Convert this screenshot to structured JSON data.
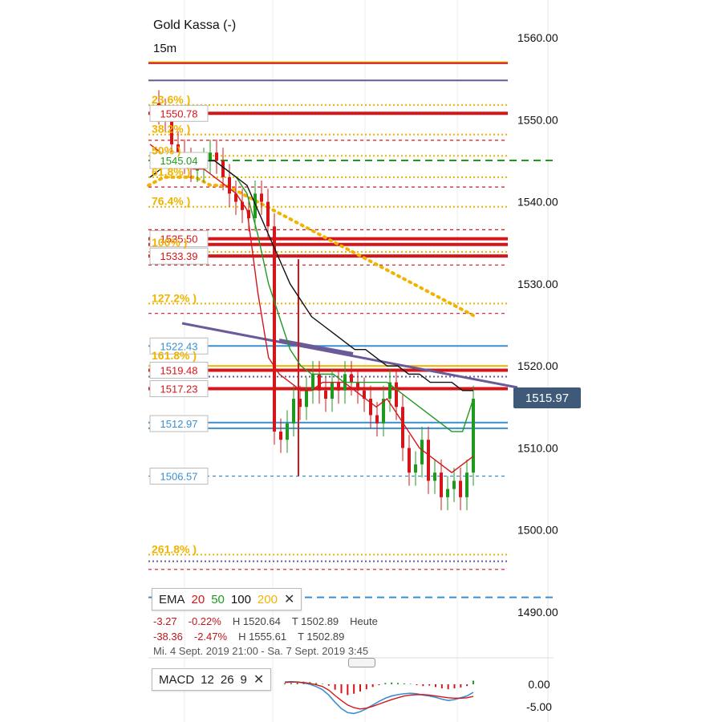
{
  "header": {
    "title": "Gold Kassa (-)",
    "timeframe": "15m"
  },
  "current_price": "1515.97",
  "level_labels": {
    "l1550": "1550.78",
    "l1545": "1545.04",
    "l1535": "1535.50",
    "l1533": "1533.39",
    "l1522": "1522.43",
    "l1519": "1519.48",
    "l1517": "1517.23",
    "l1512": "1512.97",
    "l1506": "1506.57"
  },
  "fib_labels": [
    "23.6%",
    "38.2%",
    "50%",
    "61.8%",
    "76.4%",
    "100%",
    "127.2%",
    "161.8%",
    "261.8%"
  ],
  "ema_legend": {
    "label": "EMA",
    "p20": "20",
    "p50": "50",
    "p100": "100",
    "p200": "200",
    "close": "✕"
  },
  "stats_row1": {
    "chg": "-3.27",
    "pct": "-0.22%",
    "high": "H 1520.64",
    "low": "T 1502.89",
    "period": "Heute"
  },
  "stats_row2": {
    "chg": "-38.36",
    "pct": "-2.47%",
    "high": "H 1555.61",
    "low": "T 1502.89"
  },
  "date_range": "Mi. 4 Sept. 2019 21:00 - Sa. 7 Sept. 2019 3:45",
  "macd_legend": {
    "label": "MACD",
    "fast": "12",
    "slow": "26",
    "signal": "9",
    "close": "✕"
  },
  "colors": {
    "ema20": "#d4161b",
    "ema50": "#1f9a1f",
    "ema100": "#111111",
    "ema200": "#f0b400",
    "fib": "#f0b400",
    "support": "#3a8fd0",
    "resistance": "#d4161b",
    "trendline": "#6a5a9a",
    "price_tag": "#3f5a78"
  },
  "chart_data": [
    {
      "type": "candlestick",
      "title": "Gold Kassa (-)",
      "timeframe": "15m",
      "x_range": [
        "Mi. 4 Sept. 2019 21:00",
        "Sa. 7 Sept. 2019 3:45"
      ],
      "ylim": [
        1486,
        1563
      ],
      "y_ticks": [
        "1560.00",
        "1550.00",
        "1540.00",
        "1530.00",
        "1520.00",
        "1510.00",
        "1500.00",
        "1490.00"
      ],
      "y_tick_values": [
        1560,
        1550,
        1540,
        1530,
        1520,
        1510,
        1500,
        1490
      ],
      "last_price": 1515.97,
      "close_path": [
        1552,
        1551,
        1550,
        1547,
        1546,
        1545,
        1544,
        1544,
        1545,
        1546,
        1545,
        1543,
        1541,
        1540,
        1539,
        1538,
        1541,
        1540,
        1537,
        1512,
        1511,
        1513,
        1516,
        1515,
        1517,
        1519,
        1517,
        1516,
        1518,
        1517,
        1519,
        1518,
        1517,
        1516,
        1514,
        1513,
        1516,
        1518,
        1515,
        1510,
        1507,
        1508,
        1511,
        1506,
        1507,
        1504,
        1505,
        1506,
        1504,
        1507,
        1516
      ],
      "ema_series": [
        {
          "name": "20",
          "color": "#d4161b",
          "values": [
            1547,
            1546,
            1545,
            1545,
            1544,
            1544,
            1543,
            1542,
            1541,
            1539,
            1529,
            1521,
            1519,
            1518,
            1517,
            1517,
            1518,
            1518,
            1518,
            1517,
            1516,
            1515,
            1516,
            1514,
            1512,
            1510,
            1509,
            1508,
            1507,
            1508,
            1509
          ]
        },
        {
          "name": "50",
          "color": "#1f9a1f",
          "values": [
            1545,
            1546,
            1546,
            1546,
            1546,
            1545,
            1545,
            1544,
            1543,
            1541,
            1536,
            1530,
            1526,
            1522,
            1520,
            1519,
            1519,
            1519,
            1518,
            1518,
            1518,
            1518,
            1518,
            1517,
            1516,
            1515,
            1514,
            1513,
            1512,
            1512,
            1516
          ]
        },
        {
          "name": "100",
          "color": "#111111",
          "values": [
            1543,
            1544,
            1545,
            1545,
            1545,
            1545,
            1545,
            1544,
            1543,
            1542,
            1539,
            1536,
            1533,
            1530,
            1528,
            1526,
            1525,
            1524,
            1523,
            1522,
            1522,
            1521,
            1520,
            1520,
            1519,
            1519,
            1518,
            1518,
            1518,
            1517,
            1517
          ]
        },
        {
          "name": "200",
          "color": "#f0b400",
          "values": [
            1542,
            1543,
            1543,
            1543,
            1542,
            1542,
            1541,
            1540,
            1539,
            1538,
            1537,
            1536,
            1535,
            1534,
            1533,
            1532,
            1531,
            1530,
            1529,
            1528,
            1527,
            1526
          ]
        }
      ],
      "horizontal_levels": [
        {
          "value": 1557,
          "color": "#f0b400",
          "style": "solid"
        },
        {
          "value": 1556.9,
          "color": "#d4161b",
          "style": "solid"
        },
        {
          "value": 1554.8,
          "color": "#6a5a9a",
          "style": "solid"
        },
        {
          "value": 1551.8,
          "color": "#f0b400",
          "style": "dotted"
        },
        {
          "value": 1550.78,
          "color": "#d4161b",
          "style": "thick"
        },
        {
          "value": 1548.2,
          "color": "#f0b400",
          "style": "dotted"
        },
        {
          "value": 1547.5,
          "color": "#d4161b",
          "style": "dashed"
        },
        {
          "value": 1545.6,
          "color": "#f0b400",
          "style": "dotted"
        },
        {
          "value": 1545.04,
          "color": "#1f9a1f",
          "style": "dashed"
        },
        {
          "value": 1543,
          "color": "#f0b400",
          "style": "dotted"
        },
        {
          "value": 1541.8,
          "color": "#d4161b",
          "style": "dashed"
        },
        {
          "value": 1539.4,
          "color": "#f0b400",
          "style": "dotted"
        },
        {
          "value": 1536.6,
          "color": "#d4161b",
          "style": "dashed"
        },
        {
          "value": 1535.5,
          "color": "#d4161b",
          "style": "thick"
        },
        {
          "value": 1534.8,
          "color": "#d4161b",
          "style": "thick"
        },
        {
          "value": 1533.9,
          "color": "#f0b400",
          "style": "dotted"
        },
        {
          "value": 1533.39,
          "color": "#d4161b",
          "style": "thick"
        },
        {
          "value": 1532.3,
          "color": "#d4161b",
          "style": "dashed"
        },
        {
          "value": 1527.6,
          "color": "#f0b400",
          "style": "dotted"
        },
        {
          "value": 1526.4,
          "color": "#d4161b",
          "style": "dashed"
        },
        {
          "value": 1522.43,
          "color": "#3a8fd0",
          "style": "solid"
        },
        {
          "value": 1520.0,
          "color": "#f0b400",
          "style": "solid"
        },
        {
          "value": 1519.48,
          "color": "#d4161b",
          "style": "thick"
        },
        {
          "value": 1518.7,
          "color": "#6a5a9a",
          "style": "dotted"
        },
        {
          "value": 1517.23,
          "color": "#d4161b",
          "style": "thick"
        },
        {
          "value": 1513.1,
          "color": "#3a8fd0",
          "style": "solid"
        },
        {
          "value": 1512.4,
          "color": "#3a8fd0",
          "style": "solid"
        },
        {
          "value": 1506.57,
          "color": "#3a8fd0",
          "style": "dashed"
        },
        {
          "value": 1497.0,
          "color": "#f0b400",
          "style": "dotted"
        },
        {
          "value": 1496.2,
          "color": "#6a5a9a",
          "style": "dotted"
        },
        {
          "value": 1495.2,
          "color": "#d4161b",
          "style": "dashed"
        },
        {
          "value": 1491.8,
          "color": "#3a8fd0",
          "style": "dashed"
        }
      ]
    },
    {
      "type": "bar",
      "title": "MACD 12 26 9",
      "ylim": [
        -7,
        2
      ],
      "y_ticks": [
        "0.00",
        "-5.00"
      ],
      "y_tick_values": [
        0,
        -5
      ],
      "histogram": [
        0.2,
        0.3,
        0.4,
        0.6,
        0.5,
        0.3,
        0.1,
        -0.3,
        -1.2,
        -2.0,
        -2.4,
        -2.1,
        -1.6,
        -1.1,
        -0.6,
        -0.2,
        0.3,
        0.4,
        0.3,
        0.2,
        0.1,
        -0.2,
        -0.4,
        -0.3,
        -0.6,
        -0.9,
        -1.1,
        -0.9,
        -0.7,
        -0.4,
        0.8
      ],
      "macd_line": [
        0.5,
        0.6,
        0.5,
        0.3,
        0.0,
        -0.5,
        -1.2,
        -2.4,
        -4.0,
        -5.4,
        -6.3,
        -6.5,
        -6.1,
        -5.4,
        -4.6,
        -3.8,
        -3.1,
        -2.6,
        -2.3,
        -2.1,
        -2.0,
        -2.1,
        -2.4,
        -2.6,
        -2.9,
        -3.3,
        -3.6,
        -3.4,
        -3.0,
        -2.6,
        -1.8
      ],
      "signal_line": [
        0.4,
        0.5,
        0.5,
        0.4,
        0.2,
        -0.1,
        -0.5,
        -1.3,
        -2.5,
        -3.6,
        -4.6,
        -5.2,
        -5.5,
        -5.3,
        -4.9,
        -4.4,
        -3.9,
        -3.4,
        -3.0,
        -2.6,
        -2.4,
        -2.3,
        -2.3,
        -2.4,
        -2.6,
        -2.8,
        -3.0,
        -3.1,
        -3.1,
        -3.0,
        -2.7
      ]
    }
  ]
}
